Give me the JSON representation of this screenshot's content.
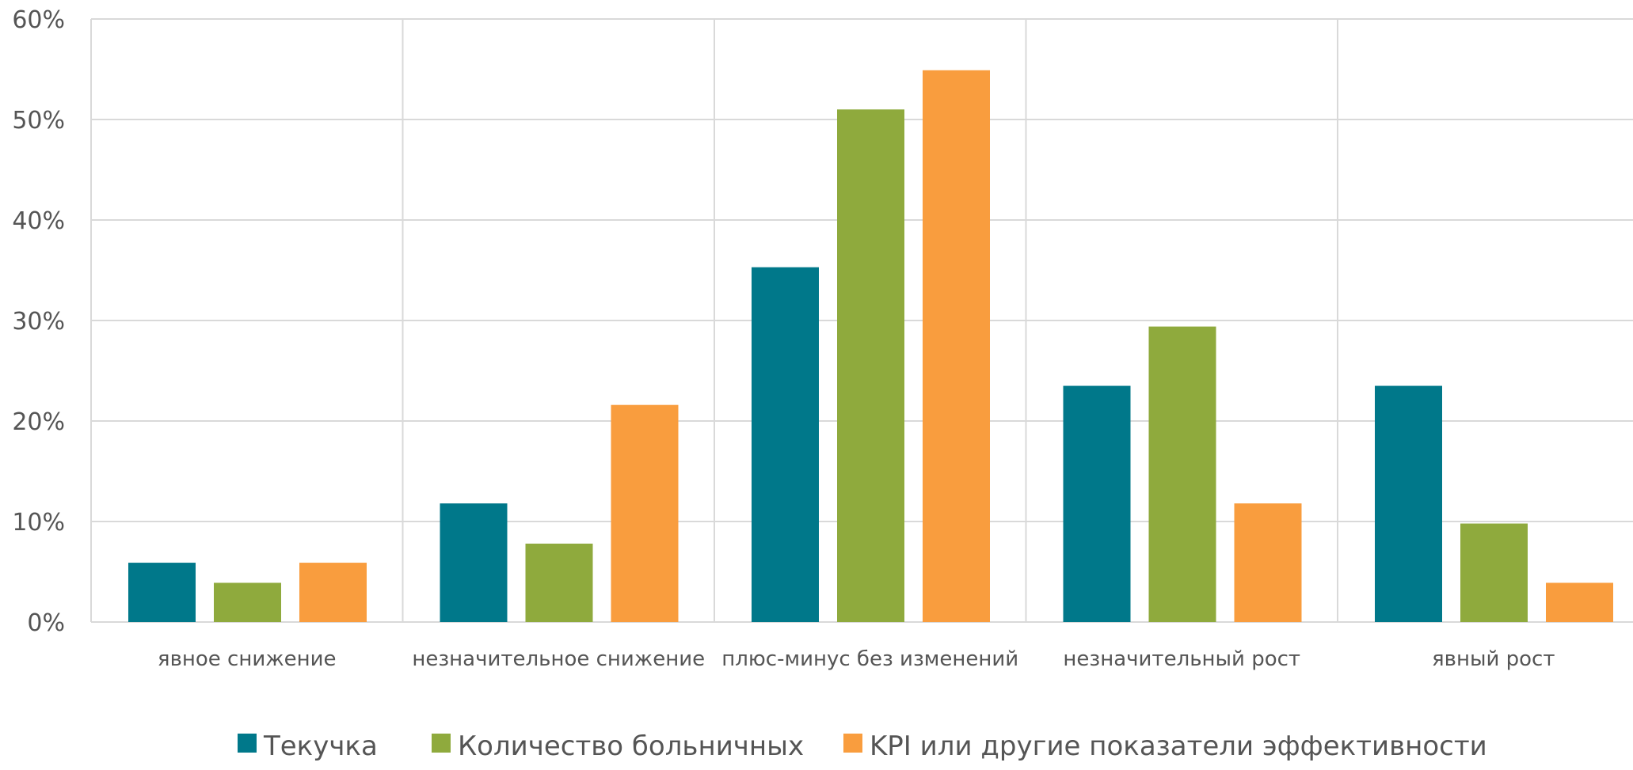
{
  "chart_data": {
    "type": "bar",
    "title": "",
    "xlabel": "",
    "ylabel": "",
    "categories": [
      "явное снижение",
      "незначительное снижение",
      "плюс-минус без изменений",
      "незначительный рост",
      "явный рост"
    ],
    "series": [
      {
        "name": "Текучка",
        "color": "#00788A",
        "values": [
          5.9,
          11.8,
          35.3,
          23.5,
          23.5
        ]
      },
      {
        "name": "Количество больничных",
        "color": "#8FAA3D",
        "values": [
          3.9,
          7.8,
          51.0,
          29.4,
          9.8
        ]
      },
      {
        "name": "KPI или другие показатели эффективности",
        "color": "#F99D3E",
        "values": [
          5.9,
          21.6,
          54.9,
          11.8,
          3.9
        ]
      }
    ],
    "ylim": [
      0,
      60
    ],
    "yticks": [
      0,
      10,
      20,
      30,
      40,
      50,
      60
    ],
    "ytick_labels": [
      "0%",
      "10%",
      "20%",
      "30%",
      "40%",
      "50%",
      "60%"
    ],
    "grid": true,
    "legend_position": "bottom"
  }
}
